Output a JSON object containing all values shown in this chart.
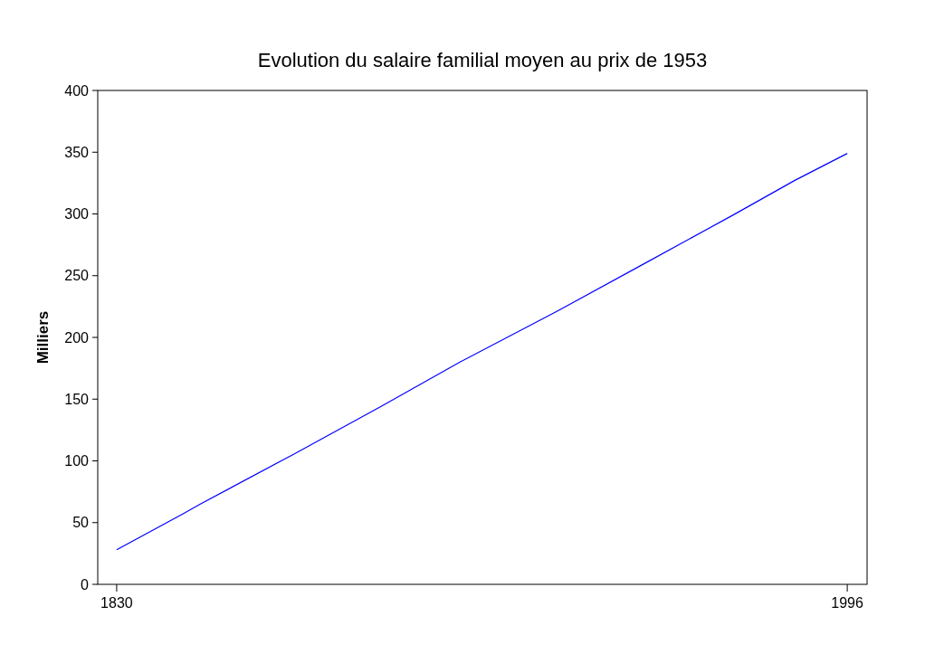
{
  "chart_data": {
    "type": "line",
    "title": "Evolution du salaire familial moyen au prix de 1953",
    "ylabel": "Milliers",
    "x": [
      1830,
      1845,
      1849,
      1870,
      1890,
      1908,
      1930,
      1950,
      1970,
      1984,
      1990,
      1996
    ],
    "series": [
      {
        "color": "#0000ff",
        "values": [
          28,
          57,
          65,
          105,
          144,
          180,
          221,
          260,
          299,
          327,
          338,
          349
        ]
      }
    ],
    "xlim": [
      1825.7,
      2000.5
    ],
    "xticks": [
      1830,
      1996
    ],
    "ylim": [
      0,
      400
    ],
    "yticks": [
      0,
      50,
      100,
      150,
      200,
      250,
      300,
      350,
      400
    ],
    "grid": false,
    "marker": "none",
    "line_style": "solid"
  }
}
